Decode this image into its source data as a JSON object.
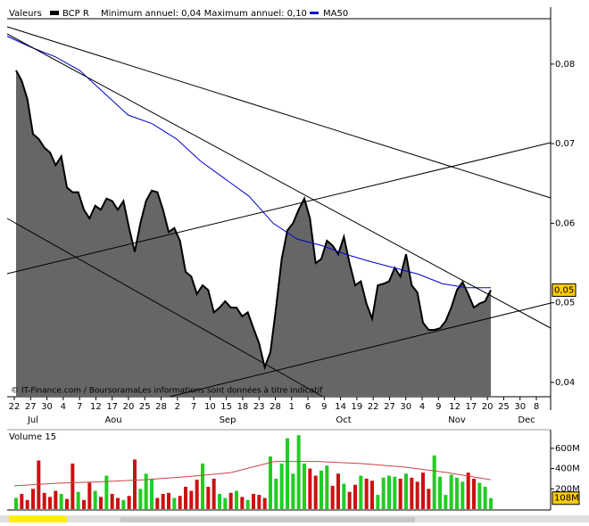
{
  "chart_data": [
    {
      "type": "area",
      "header_label": "Valeurs",
      "subtitle": "Minimum annuel: 0,04 Maximum annuel: 0,10",
      "watermark": "© IT-Finance.com / BoursoramaLes informations sont données à titre indicatif",
      "x_labels": [
        "22",
        "27",
        "30",
        "4",
        "7",
        "12",
        "17",
        "20",
        "25",
        "28",
        "2",
        "7",
        "10",
        "15",
        "18",
        "23",
        "28",
        "1",
        "6",
        "9",
        "14",
        "19",
        "22",
        "27",
        "30",
        "4",
        "9",
        "12",
        "17",
        "20",
        "25",
        "30",
        "8"
      ],
      "months": [
        "Jul",
        "Aou",
        "Sep",
        "Oct",
        "Nov",
        "Dec"
      ],
      "ylim": [
        0.0382,
        0.0857
      ],
      "yticks": [
        {
          "value": 0.04,
          "label": "0,04"
        },
        {
          "value": 0.05,
          "label": "0,05"
        },
        {
          "value": 0.06,
          "label": "0,06"
        },
        {
          "value": 0.07,
          "label": "0,07"
        },
        {
          "value": 0.08,
          "label": "0,08"
        }
      ],
      "last_value_label": "0,05",
      "series": [
        {
          "name": "BCP R",
          "type": "area",
          "color": "#666666",
          "line_color": "#000000",
          "values": [
            0.0792,
            0.0779,
            0.0756,
            0.0712,
            0.0706,
            0.0695,
            0.0689,
            0.0673,
            0.0684,
            0.0645,
            0.0639,
            0.0639,
            0.0617,
            0.0606,
            0.0622,
            0.0617,
            0.0631,
            0.0628,
            0.0617,
            0.0628,
            0.0594,
            0.0564,
            0.06,
            0.0628,
            0.0641,
            0.0639,
            0.0617,
            0.0589,
            0.0594,
            0.0578,
            0.0539,
            0.0533,
            0.0511,
            0.0522,
            0.0516,
            0.0488,
            0.0494,
            0.0502,
            0.0494,
            0.0494,
            0.0483,
            0.0488,
            0.0468,
            0.0449,
            0.0419,
            0.0438,
            0.0494,
            0.0555,
            0.0591,
            0.06,
            0.0617,
            0.0631,
            0.0606,
            0.055,
            0.0555,
            0.0578,
            0.0572,
            0.0561,
            0.0583,
            0.055,
            0.0522,
            0.0527,
            0.0499,
            0.048,
            0.0522,
            0.0524,
            0.0527,
            0.0544,
            0.0533,
            0.0561,
            0.0522,
            0.0513,
            0.0475,
            0.0466,
            0.0466,
            0.0468,
            0.0477,
            0.0494,
            0.0516,
            0.0526,
            0.0511,
            0.0494,
            0.0499,
            0.0502,
            0.0516
          ]
        },
        {
          "name": "MA50",
          "type": "line",
          "color": "#0000cc",
          "values": [
            0.0835,
            0.0821,
            0.0809,
            0.0792,
            0.0764,
            0.0736,
            0.0725,
            0.0706,
            0.0678,
            0.0656,
            0.0634,
            0.06,
            0.058,
            0.0572,
            0.0561,
            0.0552,
            0.0544,
            0.0536,
            0.0524,
            0.0519,
            0.0519
          ]
        }
      ]
    },
    {
      "type": "bar",
      "title": "Volume 15",
      "up_color": "#22cc22",
      "down_color": "#cc1111",
      "ma_color": "#cc4444",
      "ylim": [
        0,
        740
      ],
      "yticks": [
        {
          "value": 200,
          "label": "200M"
        },
        {
          "value": 400,
          "label": "400M"
        },
        {
          "value": 600,
          "label": "600M"
        }
      ],
      "last_value_label": "108M",
      "values": [
        110,
        150,
        90,
        200,
        480,
        160,
        120,
        180,
        150,
        100,
        450,
        170,
        90,
        260,
        180,
        120,
        330,
        150,
        110,
        90,
        130,
        490,
        200,
        350,
        300,
        110,
        150,
        160,
        110,
        130,
        220,
        180,
        290,
        450,
        220,
        300,
        150,
        110,
        160,
        180,
        120,
        90,
        150,
        140,
        110,
        520,
        300,
        450,
        700,
        350,
        730,
        450,
        400,
        330,
        380,
        430,
        230,
        350,
        250,
        170,
        240,
        330,
        300,
        280,
        140,
        310,
        330,
        320,
        300,
        350,
        310,
        270,
        360,
        200,
        530,
        320,
        140,
        340,
        310,
        270,
        360,
        300,
        260,
        220,
        108
      ],
      "ma_values": [
        230,
        255,
        270,
        290,
        320,
        360,
        470,
        470,
        450,
        415,
        360,
        290
      ]
    }
  ]
}
